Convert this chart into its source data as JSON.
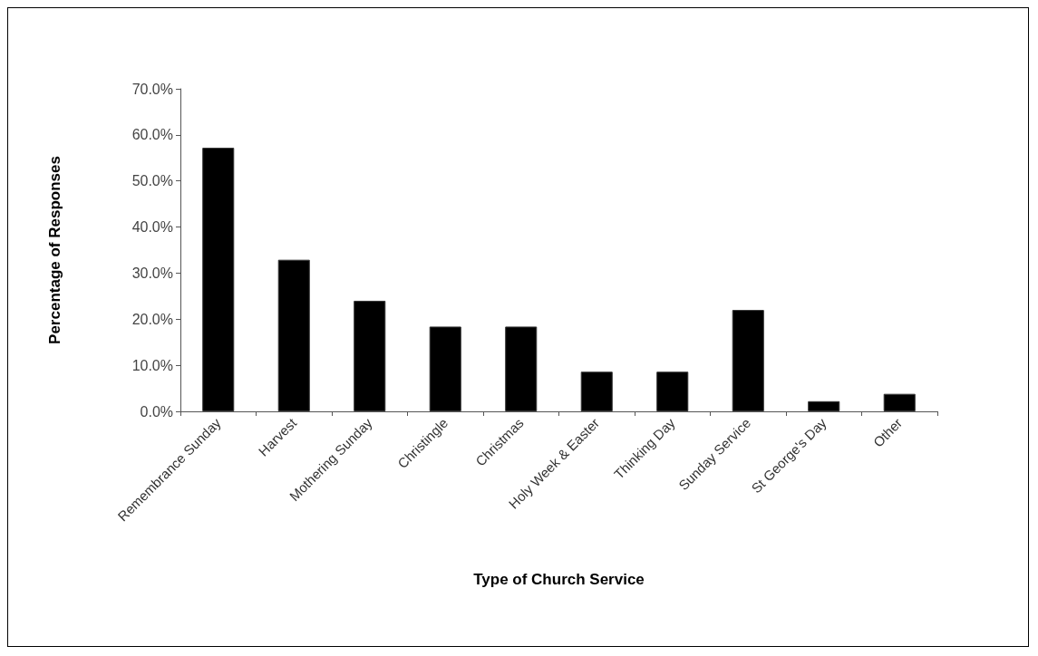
{
  "chart_data": {
    "type": "bar",
    "xlabel": "Type of Church Service",
    "ylabel": "Percentage of Responses",
    "categories": [
      "Remembrance Sunday",
      "Harvest",
      "Mothering Sunday",
      "Christingle",
      "Christmas",
      "Holy Week & Easter",
      "Thinking Day",
      "Sunday Service",
      "St George's Day",
      "Other"
    ],
    "values": [
      57.2,
      32.9,
      24.0,
      18.4,
      18.4,
      8.6,
      8.6,
      22.0,
      2.2,
      3.8
    ],
    "color": "#000000",
    "ylim": [
      0,
      70
    ],
    "yticks": [
      {
        "value": 0,
        "label": "0.0%"
      },
      {
        "value": 10,
        "label": "10.0%"
      },
      {
        "value": 20,
        "label": "20.0%"
      },
      {
        "value": 30,
        "label": "30.0%"
      },
      {
        "value": 40,
        "label": "40.0%"
      },
      {
        "value": 50,
        "label": "50.0%"
      },
      {
        "value": 60,
        "label": "60.0%"
      },
      {
        "value": 70,
        "label": "70.0%"
      }
    ],
    "grid": false
  }
}
